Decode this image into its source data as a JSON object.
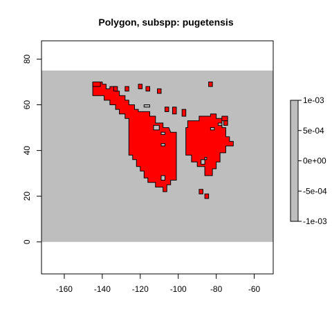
{
  "chart_data": {
    "type": "raster-map",
    "title": "Polygon, subspp: pugetensis",
    "xlim": [
      -172,
      -50
    ],
    "ylim": [
      -14,
      88
    ],
    "x_ticks": [
      -160,
      -140,
      -120,
      -100,
      -80,
      -60
    ],
    "y_ticks": [
      0,
      20,
      40,
      60,
      80
    ],
    "x_tick_labels": [
      "-160",
      "-140",
      "-120",
      "-100",
      "-80",
      "-60"
    ],
    "y_tick_labels": [
      "0",
      "20",
      "40",
      "60",
      "80"
    ],
    "raster_extent": {
      "xmin": -172,
      "xmax": -50,
      "ymin": 0,
      "ymax": 75
    },
    "background_color": "#bebebe",
    "polygon_color": "#ff0000",
    "polygon_edge_color": "#000000",
    "legend": {
      "placement": "right",
      "range": [
        -0.001,
        0.001
      ],
      "color": "#bebebe",
      "tick_values": [
        0.001,
        0.0005,
        0,
        -0.0005,
        -0.001
      ],
      "tick_labels": [
        "1e-03",
        "5e-04",
        "0e+00",
        "-5e-04",
        "-1e-03"
      ]
    },
    "polygons": [
      {
        "name": "western",
        "points": [
          [
            -145,
            70
          ],
          [
            -140,
            70
          ],
          [
            -140,
            69
          ],
          [
            -138,
            69
          ],
          [
            -138,
            67
          ],
          [
            -136,
            67
          ],
          [
            -136,
            68
          ],
          [
            -133,
            68
          ],
          [
            -133,
            66
          ],
          [
            -131,
            66
          ],
          [
            -131,
            64
          ],
          [
            -128,
            64
          ],
          [
            -128,
            62
          ],
          [
            -126,
            62
          ],
          [
            -126,
            60
          ],
          [
            -123,
            60
          ],
          [
            -123,
            58
          ],
          [
            -121,
            58
          ],
          [
            -121,
            57
          ],
          [
            -115,
            57
          ],
          [
            -115,
            55
          ],
          [
            -112,
            55
          ],
          [
            -112,
            52
          ],
          [
            -108,
            52
          ],
          [
            -108,
            50
          ],
          [
            -105,
            50
          ],
          [
            -104,
            48
          ],
          [
            -101,
            48
          ],
          [
            -101,
            27
          ],
          [
            -104,
            27
          ],
          [
            -104,
            25
          ],
          [
            -106,
            25
          ],
          [
            -106,
            22
          ],
          [
            -108,
            22
          ],
          [
            -108,
            24
          ],
          [
            -112,
            24
          ],
          [
            -112,
            26
          ],
          [
            -116,
            26
          ],
          [
            -116,
            28
          ],
          [
            -118,
            28
          ],
          [
            -118,
            31
          ],
          [
            -120,
            31
          ],
          [
            -120,
            33
          ],
          [
            -122,
            33
          ],
          [
            -122,
            36
          ],
          [
            -124,
            36
          ],
          [
            -124,
            38
          ],
          [
            -126,
            38
          ],
          [
            -126,
            54
          ],
          [
            -128,
            54
          ],
          [
            -128,
            56
          ],
          [
            -131,
            56
          ],
          [
            -131,
            58
          ],
          [
            -133,
            58
          ],
          [
            -133,
            60
          ],
          [
            -136,
            60
          ],
          [
            -136,
            62
          ],
          [
            -139,
            62
          ],
          [
            -139,
            64
          ],
          [
            -145,
            64
          ]
        ]
      },
      {
        "name": "eastern",
        "points": [
          [
            -95,
            53
          ],
          [
            -89,
            53
          ],
          [
            -89,
            55
          ],
          [
            -83,
            55
          ],
          [
            -83,
            56
          ],
          [
            -80,
            56
          ],
          [
            -80,
            54
          ],
          [
            -77,
            54
          ],
          [
            -77,
            50
          ],
          [
            -75,
            50
          ],
          [
            -75,
            46
          ],
          [
            -73,
            46
          ],
          [
            -73,
            44
          ],
          [
            -71,
            44
          ],
          [
            -71,
            42
          ],
          [
            -75,
            42
          ],
          [
            -75,
            39
          ],
          [
            -78,
            39
          ],
          [
            -78,
            35
          ],
          [
            -80,
            35
          ],
          [
            -80,
            32
          ],
          [
            -82,
            32
          ],
          [
            -82,
            29
          ],
          [
            -86,
            29
          ],
          [
            -86,
            33
          ],
          [
            -90,
            33
          ],
          [
            -90,
            35
          ],
          [
            -93,
            35
          ],
          [
            -93,
            38
          ],
          [
            -96,
            38
          ],
          [
            -96,
            50
          ],
          [
            -95,
            50
          ]
        ]
      },
      {
        "name": "islands",
        "rects": [
          [
            -145,
            68,
            4,
            2
          ],
          [
            -134,
            66,
            2,
            2
          ],
          [
            -128,
            66,
            2,
            2
          ],
          [
            -121,
            67,
            2,
            2
          ],
          [
            -117,
            66,
            2,
            2
          ],
          [
            -111,
            65,
            2,
            2
          ],
          [
            -107,
            57,
            2,
            2
          ],
          [
            -103,
            56,
            2,
            3
          ],
          [
            -98,
            55,
            2,
            3
          ],
          [
            -84,
            68,
            2,
            2
          ],
          [
            -77,
            53,
            3,
            2
          ],
          [
            -89,
            21,
            2,
            2
          ],
          [
            -86,
            19,
            2,
            2
          ],
          [
            -76,
            51,
            2,
            2
          ]
        ]
      }
    ],
    "holes": [
      [
        -118,
        59,
        3,
        1
      ],
      [
        -113,
        49,
        3,
        2
      ],
      [
        -109,
        42,
        2,
        1
      ],
      [
        -109,
        47,
        2,
        1
      ],
      [
        -109,
        27,
        2,
        2
      ],
      [
        -88,
        34,
        2,
        2
      ],
      [
        -86,
        36,
        1,
        1
      ],
      [
        -79,
        51,
        2,
        1
      ],
      [
        -83,
        49,
        2,
        1
      ]
    ]
  }
}
